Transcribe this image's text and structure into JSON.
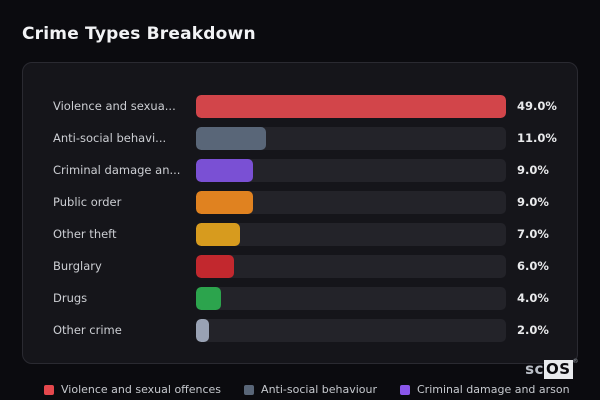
{
  "title": "Crime Types Breakdown",
  "chart_data": {
    "type": "bar",
    "orientation": "horizontal",
    "title": "Crime Types Breakdown",
    "xlim": [
      0,
      49
    ],
    "grid": false,
    "value_suffix": "%",
    "categories": [
      "Violence and sexual offences",
      "Anti-social behaviour",
      "Criminal damage and arson",
      "Public order",
      "Other theft",
      "Burglary",
      "Drugs",
      "Other crime"
    ],
    "values": [
      49.0,
      11.0,
      9.0,
      9.0,
      7.0,
      6.0,
      4.0,
      2.0
    ],
    "rows": [
      {
        "label": "Violence and sexual offences",
        "label_short": "Violence and sexua...",
        "value": 49.0,
        "value_label": "49.0%",
        "color": "#d2454a"
      },
      {
        "label": "Anti-social behaviour",
        "label_short": "Anti-social behavi...",
        "value": 11.0,
        "value_label": "11.0%",
        "color": "#596678"
      },
      {
        "label": "Criminal damage and arson",
        "label_short": "Criminal damage an...",
        "value": 9.0,
        "value_label": "9.0%",
        "color": "#7a50d4"
      },
      {
        "label": "Public order",
        "label_short": "Public order",
        "value": 9.0,
        "value_label": "9.0%",
        "color": "#e08220"
      },
      {
        "label": "Other theft",
        "label_short": "Other theft",
        "value": 7.0,
        "value_label": "7.0%",
        "color": "#d79b1e"
      },
      {
        "label": "Burglary",
        "label_short": "Burglary",
        "value": 6.0,
        "value_label": "6.0%",
        "color": "#c2282e"
      },
      {
        "label": "Drugs",
        "label_short": "Drugs",
        "value": 4.0,
        "value_label": "4.0%",
        "color": "#2ca44d"
      },
      {
        "label": "Other crime",
        "label_short": "Other crime",
        "value": 2.0,
        "value_label": "2.0%",
        "color": "#99a2b4"
      }
    ]
  },
  "legend": {
    "items": [
      {
        "label": "Violence and sexual offences",
        "color": "#e5484d"
      },
      {
        "label": "Anti-social behaviour",
        "color": "#596678"
      },
      {
        "label": "Criminal damage and arson",
        "color": "#8a57ea"
      }
    ]
  },
  "watermark": {
    "prefix": "sc",
    "suffix": "OS",
    "registered": "®"
  },
  "colors": {
    "page_bg": "#0b0b0f",
    "panel_bg": "#15151a",
    "panel_border": "#2a2a31",
    "track_bg": "#232329",
    "title_text": "#f2f3f5",
    "label_text": "#ccced3",
    "value_text": "#e9eaec",
    "legend_text": "#c6c9ce"
  }
}
